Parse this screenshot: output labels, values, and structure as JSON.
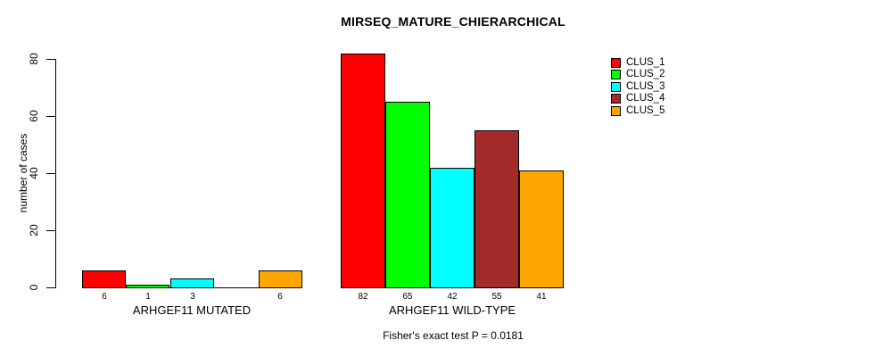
{
  "chart_data": {
    "type": "bar",
    "title": "MIRSEQ_MATURE_CHIERARCHICAL",
    "ylabel": "number of cases",
    "xlabel": "",
    "footer": "Fisher's exact test P = 0.0181",
    "ylim": [
      0,
      80
    ],
    "yticks": [
      0,
      20,
      40,
      60,
      80
    ],
    "grid": false,
    "legend_position": "top-right",
    "categories": [
      "ARHGEF11 MUTATED",
      "ARHGEF11 WILD-TYPE"
    ],
    "series": [
      {
        "name": "CLUS_1",
        "color": "#FF0000",
        "values": [
          6,
          82
        ]
      },
      {
        "name": "CLUS_2",
        "color": "#00FF00",
        "values": [
          1,
          65
        ]
      },
      {
        "name": "CLUS_3",
        "color": "#00FFFF",
        "values": [
          3,
          42
        ]
      },
      {
        "name": "CLUS_4",
        "color": "#A52A2A",
        "values": [
          0,
          55
        ]
      },
      {
        "name": "CLUS_5",
        "color": "#FFA500",
        "values": [
          6,
          41
        ]
      }
    ],
    "value_labels": [
      [
        "6",
        "1",
        "3",
        "",
        "6"
      ],
      [
        "82",
        "65",
        "42",
        "55",
        "41"
      ]
    ]
  },
  "colors": {
    "background": "#FFFFFF",
    "axis": "#000000",
    "bar_border": "#000000",
    "text": "#000000"
  }
}
